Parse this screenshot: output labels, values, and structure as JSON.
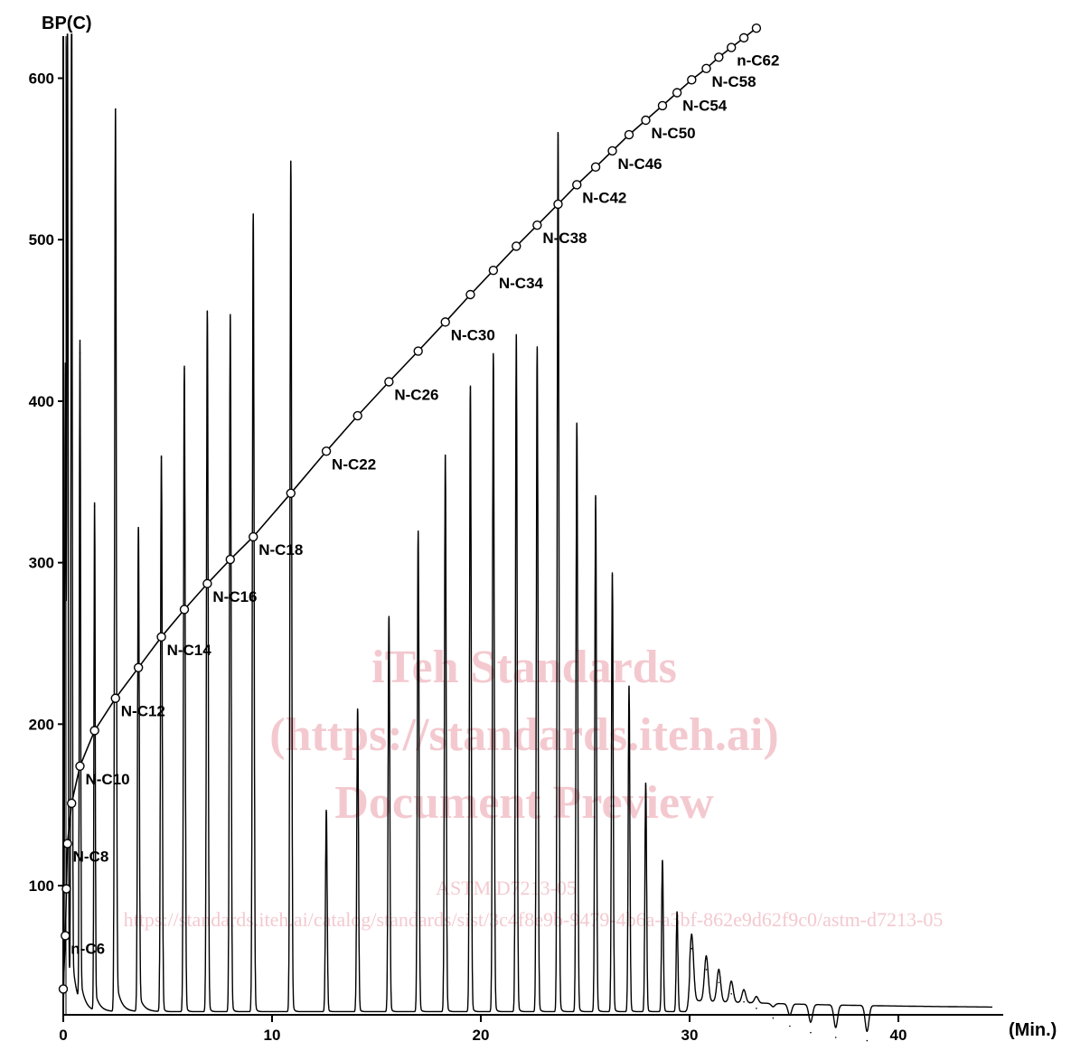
{
  "chart_data": {
    "type": "line",
    "title": "",
    "ylabel": "BP(C)",
    "xlabel": "(Min.)",
    "xlim": [
      0,
      45
    ],
    "ylim": [
      0,
      650
    ],
    "x_ticks": [
      0,
      10,
      20,
      30,
      40
    ],
    "y_ticks": [
      100,
      200,
      300,
      400,
      500,
      600
    ],
    "grid": false,
    "legend": "none",
    "series": [
      {
        "kind": "calibration-curve",
        "points": [
          {
            "x": 0.0,
            "y": 36
          },
          {
            "x": 0.1,
            "y": 69
          },
          {
            "x": 0.15,
            "y": 98
          },
          {
            "x": 0.2,
            "y": 126
          },
          {
            "x": 0.4,
            "y": 151
          },
          {
            "x": 0.8,
            "y": 174
          },
          {
            "x": 1.5,
            "y": 196
          },
          {
            "x": 2.5,
            "y": 216
          },
          {
            "x": 3.6,
            "y": 235
          },
          {
            "x": 4.7,
            "y": 254
          },
          {
            "x": 5.8,
            "y": 271
          },
          {
            "x": 6.9,
            "y": 287
          },
          {
            "x": 8.0,
            "y": 302
          },
          {
            "x": 9.1,
            "y": 316
          },
          {
            "x": 10.9,
            "y": 343
          },
          {
            "x": 12.6,
            "y": 369
          },
          {
            "x": 14.1,
            "y": 391
          },
          {
            "x": 15.6,
            "y": 412
          },
          {
            "x": 17.0,
            "y": 431
          },
          {
            "x": 18.3,
            "y": 449
          },
          {
            "x": 19.5,
            "y": 466
          },
          {
            "x": 20.6,
            "y": 481
          },
          {
            "x": 21.7,
            "y": 496
          },
          {
            "x": 22.7,
            "y": 509
          },
          {
            "x": 23.7,
            "y": 522
          },
          {
            "x": 24.6,
            "y": 534
          },
          {
            "x": 25.5,
            "y": 545
          },
          {
            "x": 26.3,
            "y": 555
          },
          {
            "x": 27.1,
            "y": 565
          },
          {
            "x": 27.9,
            "y": 574
          },
          {
            "x": 28.7,
            "y": 583
          },
          {
            "x": 29.4,
            "y": 591
          },
          {
            "x": 30.1,
            "y": 599
          },
          {
            "x": 30.8,
            "y": 606
          },
          {
            "x": 31.4,
            "y": 613
          },
          {
            "x": 32.0,
            "y": 619
          },
          {
            "x": 32.6,
            "y": 625
          },
          {
            "x": 33.2,
            "y": 631
          }
        ]
      },
      {
        "kind": "chromatogram-peaks",
        "points": [
          {
            "x": 0.1,
            "y": 420
          },
          {
            "x": 0.2,
            "y": 650
          },
          {
            "x": 0.4,
            "y": 650
          },
          {
            "x": 0.8,
            "y": 430
          },
          {
            "x": 1.5,
            "y": 335
          },
          {
            "x": 2.5,
            "y": 580
          },
          {
            "x": 3.6,
            "y": 320
          },
          {
            "x": 4.7,
            "y": 365
          },
          {
            "x": 5.8,
            "y": 420
          },
          {
            "x": 6.9,
            "y": 455
          },
          {
            "x": 8.0,
            "y": 452
          },
          {
            "x": 9.1,
            "y": 515
          },
          {
            "x": 10.9,
            "y": 548
          },
          {
            "x": 12.6,
            "y": 145
          },
          {
            "x": 14.1,
            "y": 208
          },
          {
            "x": 15.6,
            "y": 265
          },
          {
            "x": 17.0,
            "y": 318
          },
          {
            "x": 18.3,
            "y": 365
          },
          {
            "x": 19.5,
            "y": 408
          },
          {
            "x": 20.6,
            "y": 428
          },
          {
            "x": 21.7,
            "y": 440
          },
          {
            "x": 22.7,
            "y": 432
          },
          {
            "x": 23.7,
            "y": 565
          },
          {
            "x": 24.6,
            "y": 385
          },
          {
            "x": 25.5,
            "y": 340
          },
          {
            "x": 26.3,
            "y": 292
          },
          {
            "x": 27.1,
            "y": 222
          },
          {
            "x": 27.9,
            "y": 162
          },
          {
            "x": 28.7,
            "y": 114
          },
          {
            "x": 29.4,
            "y": 82
          },
          {
            "x": 30.1,
            "y": 61
          },
          {
            "x": 30.8,
            "y": 48
          },
          {
            "x": 31.4,
            "y": 40
          },
          {
            "x": 32.0,
            "y": 33
          },
          {
            "x": 32.6,
            "y": 28
          },
          {
            "x": 33.2,
            "y": 24
          },
          {
            "x": 34.0,
            "y": 18
          },
          {
            "x": 34.8,
            "y": 13
          },
          {
            "x": 35.8,
            "y": 9
          },
          {
            "x": 37.0,
            "y": 6
          },
          {
            "x": 38.5,
            "y": 4
          }
        ]
      }
    ],
    "annotations": [
      {
        "text": "n-C6",
        "x": 0.1,
        "y": 69
      },
      {
        "text": "N-C8",
        "x": 0.2,
        "y": 126
      },
      {
        "text": "N-C10",
        "x": 0.8,
        "y": 174
      },
      {
        "text": "N-C12",
        "x": 2.5,
        "y": 216
      },
      {
        "text": "N-C14",
        "x": 4.7,
        "y": 254
      },
      {
        "text": "N-C16",
        "x": 6.9,
        "y": 287
      },
      {
        "text": "N-C18",
        "x": 9.1,
        "y": 316
      },
      {
        "text": "N-C22",
        "x": 12.6,
        "y": 369
      },
      {
        "text": "N-C26",
        "x": 15.6,
        "y": 412
      },
      {
        "text": "N-C30",
        "x": 18.3,
        "y": 449
      },
      {
        "text": "N-C34",
        "x": 20.6,
        "y": 481
      },
      {
        "text": "N-C38",
        "x": 22.7,
        "y": 509
      },
      {
        "text": "N-C42",
        "x": 24.6,
        "y": 534
      },
      {
        "text": "N-C46",
        "x": 26.3,
        "y": 555
      },
      {
        "text": "N-C50",
        "x": 27.9,
        "y": 574
      },
      {
        "text": "N-C54",
        "x": 29.4,
        "y": 591
      },
      {
        "text": "N-C58",
        "x": 30.8,
        "y": 606
      },
      {
        "text": "n-C62",
        "x": 32.0,
        "y": 619
      }
    ],
    "colors": {
      "ink": "#000000",
      "watermark": "#f3c9cf"
    }
  },
  "watermark": {
    "line1": "iTeh Standards",
    "line2": "(https://standards.iteh.ai)",
    "line3": "Document Preview",
    "line4": "ASTM D7213-05",
    "line5": "https://standards.iteh.ai/catalog/standards/sist/3c4f8e9b-9479-4b6a-a3bf-862e9d62f9c0/astm-d7213-05"
  }
}
